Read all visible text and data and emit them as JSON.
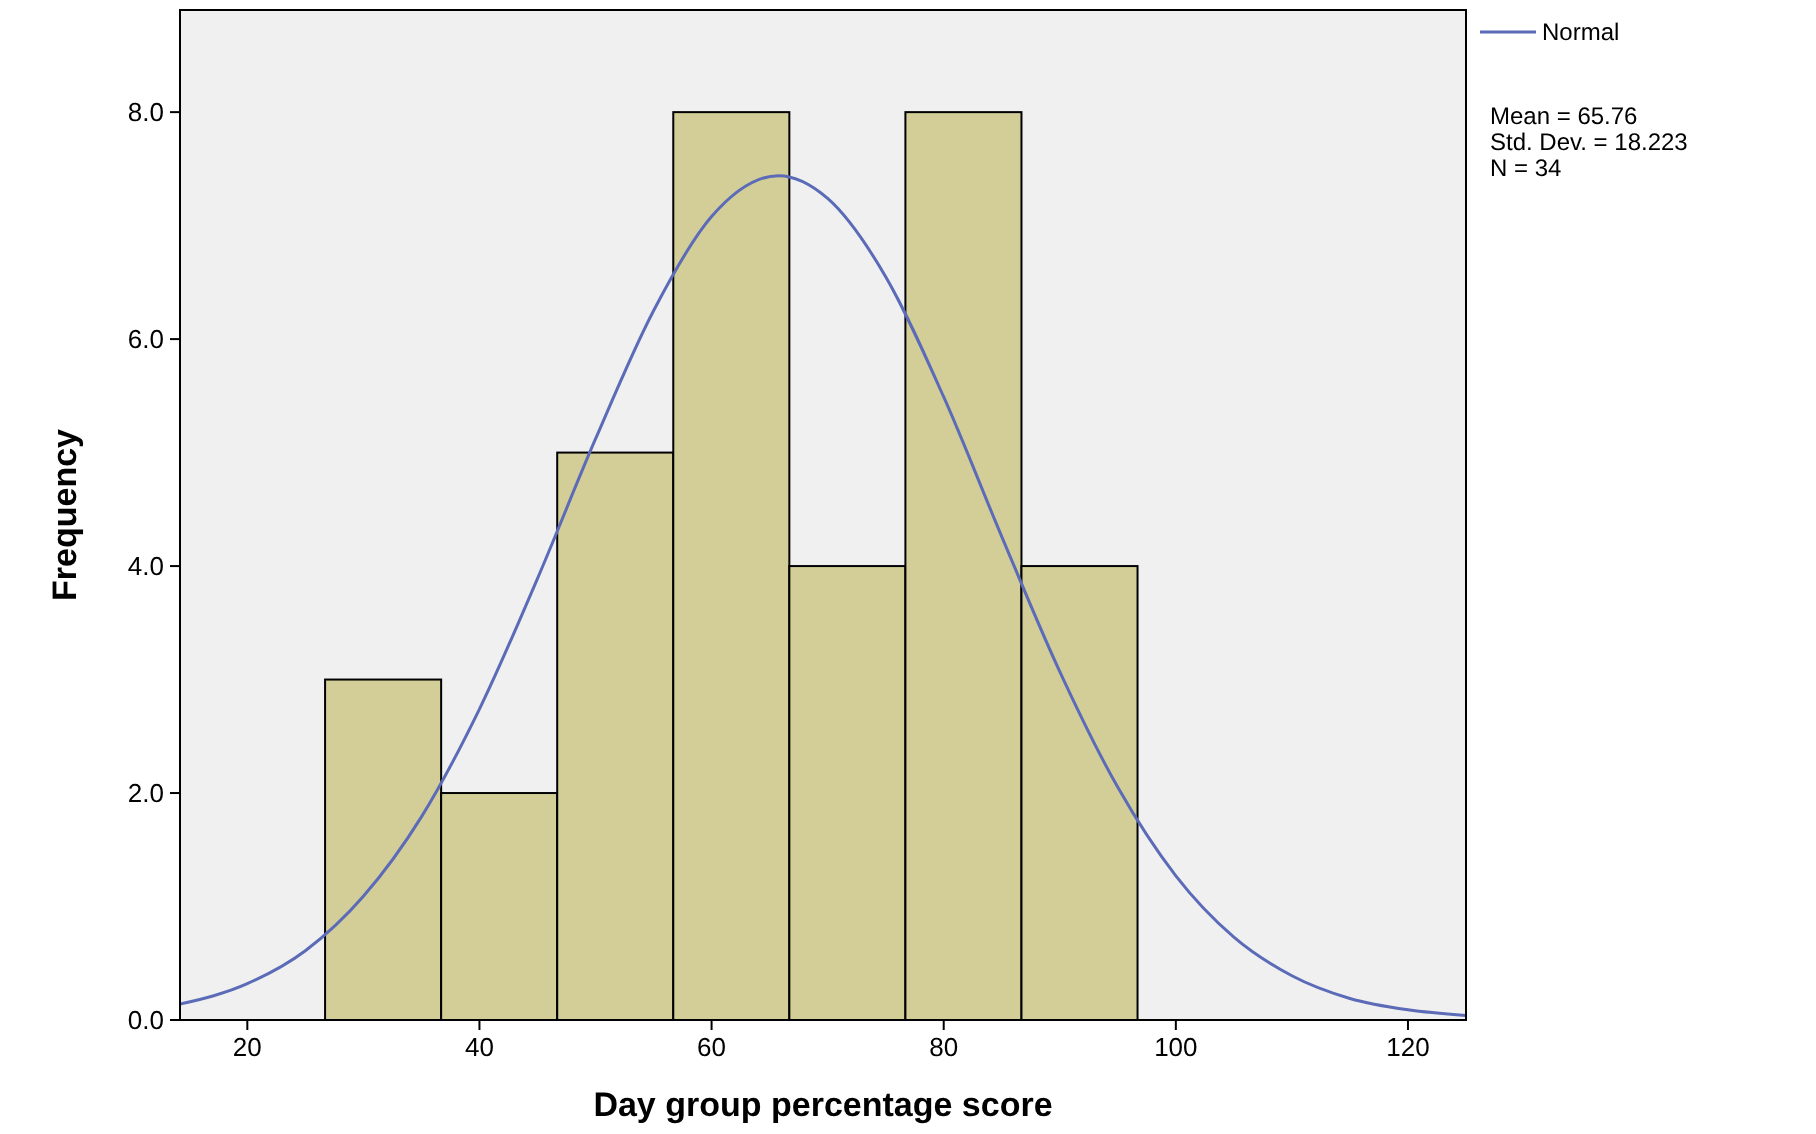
{
  "chart_data": {
    "type": "histogram",
    "xlabel": "Day group percentage score",
    "ylabel": "Frequency",
    "bins": [
      26.7,
      36.7,
      46.7,
      56.7,
      66.7,
      76.7,
      86.7,
      96.7
    ],
    "values": [
      3,
      2,
      5,
      8,
      4,
      8,
      4
    ],
    "color": "#d3ce98",
    "xlim": [
      14.2,
      125
    ],
    "xticks": [
      20,
      40,
      60,
      80,
      100,
      120
    ],
    "ylim": [
      0,
      8.9
    ],
    "yticks": [
      {
        "value": 0,
        "label": "0.0"
      },
      {
        "value": 2,
        "label": "2.0"
      },
      {
        "value": 4,
        "label": "4.0"
      },
      {
        "value": 6,
        "label": "6.0"
      },
      {
        "value": 8,
        "label": "8.0"
      }
    ],
    "series": [
      {
        "type": "line",
        "name": "Normal",
        "color": "#5b6bb8",
        "x": [
          14.2,
          20,
          25,
          30,
          35,
          40,
          45,
          50,
          55,
          60,
          65.76,
          70,
          75,
          80,
          85,
          90,
          95,
          100,
          105,
          110,
          115,
          120,
          125
        ],
        "values": [
          0.14,
          0.32,
          0.61,
          1.09,
          1.79,
          2.74,
          3.89,
          5.12,
          6.25,
          7.08,
          7.44,
          7.24,
          6.55,
          5.49,
          4.26,
          3.07,
          2.05,
          1.27,
          0.73,
          0.39,
          0.19,
          0.09,
          0.04
        ]
      }
    ],
    "annotations": [
      "Mean = 65.76",
      "Std. Dev. = 18.223",
      "N = 34"
    ],
    "legend": "top right",
    "grid": false
  }
}
